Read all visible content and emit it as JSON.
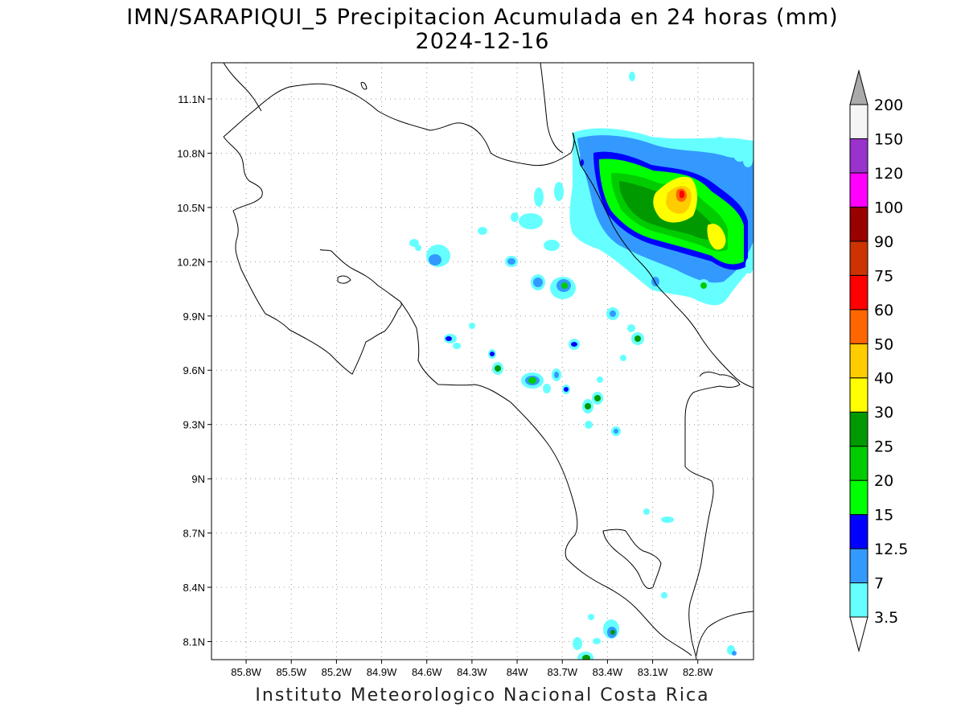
{
  "title_line1": "IMN/SARAPIQUI_5 Precipitacion Acumulada en 24 horas (mm)",
  "title_line2": "2024-12-16",
  "footer": "Instituto Meteorologico Nacional Costa Rica",
  "map": {
    "lon_range": [
      -86.03,
      -82.43
    ],
    "lat_range": [
      8.0,
      11.3
    ],
    "x_ticks": [
      "85.8W",
      "85.5W",
      "85.2W",
      "84.9W",
      "84.6W",
      "84.3W",
      "84W",
      "83.7W",
      "83.4W",
      "83.1W",
      "82.8W"
    ],
    "y_ticks": [
      "11.1N",
      "10.8N",
      "10.5N",
      "10.2N",
      "9.9N",
      "9.6N",
      "9.3N",
      "9N",
      "8.7N",
      "8.4N",
      "8.1N"
    ],
    "grid": "dotted"
  },
  "colorbar": {
    "labels": [
      "3.5",
      "7",
      "12.5",
      "15",
      "20",
      "25",
      "30",
      "40",
      "50",
      "60",
      "75",
      "90",
      "100",
      "120",
      "150",
      "200"
    ],
    "colors": [
      "#66ffff",
      "#3399ff",
      "#0000ff",
      "#00ff00",
      "#00cc00",
      "#009900",
      "#ffff00",
      "#ffcc00",
      "#ff6600",
      "#ff0000",
      "#cc3300",
      "#990000",
      "#ff00ff",
      "#9933cc",
      "#f5f5f5",
      "#aaaaaa"
    ],
    "extend_low": "#ffffff",
    "extend_high": "#aaaaaa"
  }
}
